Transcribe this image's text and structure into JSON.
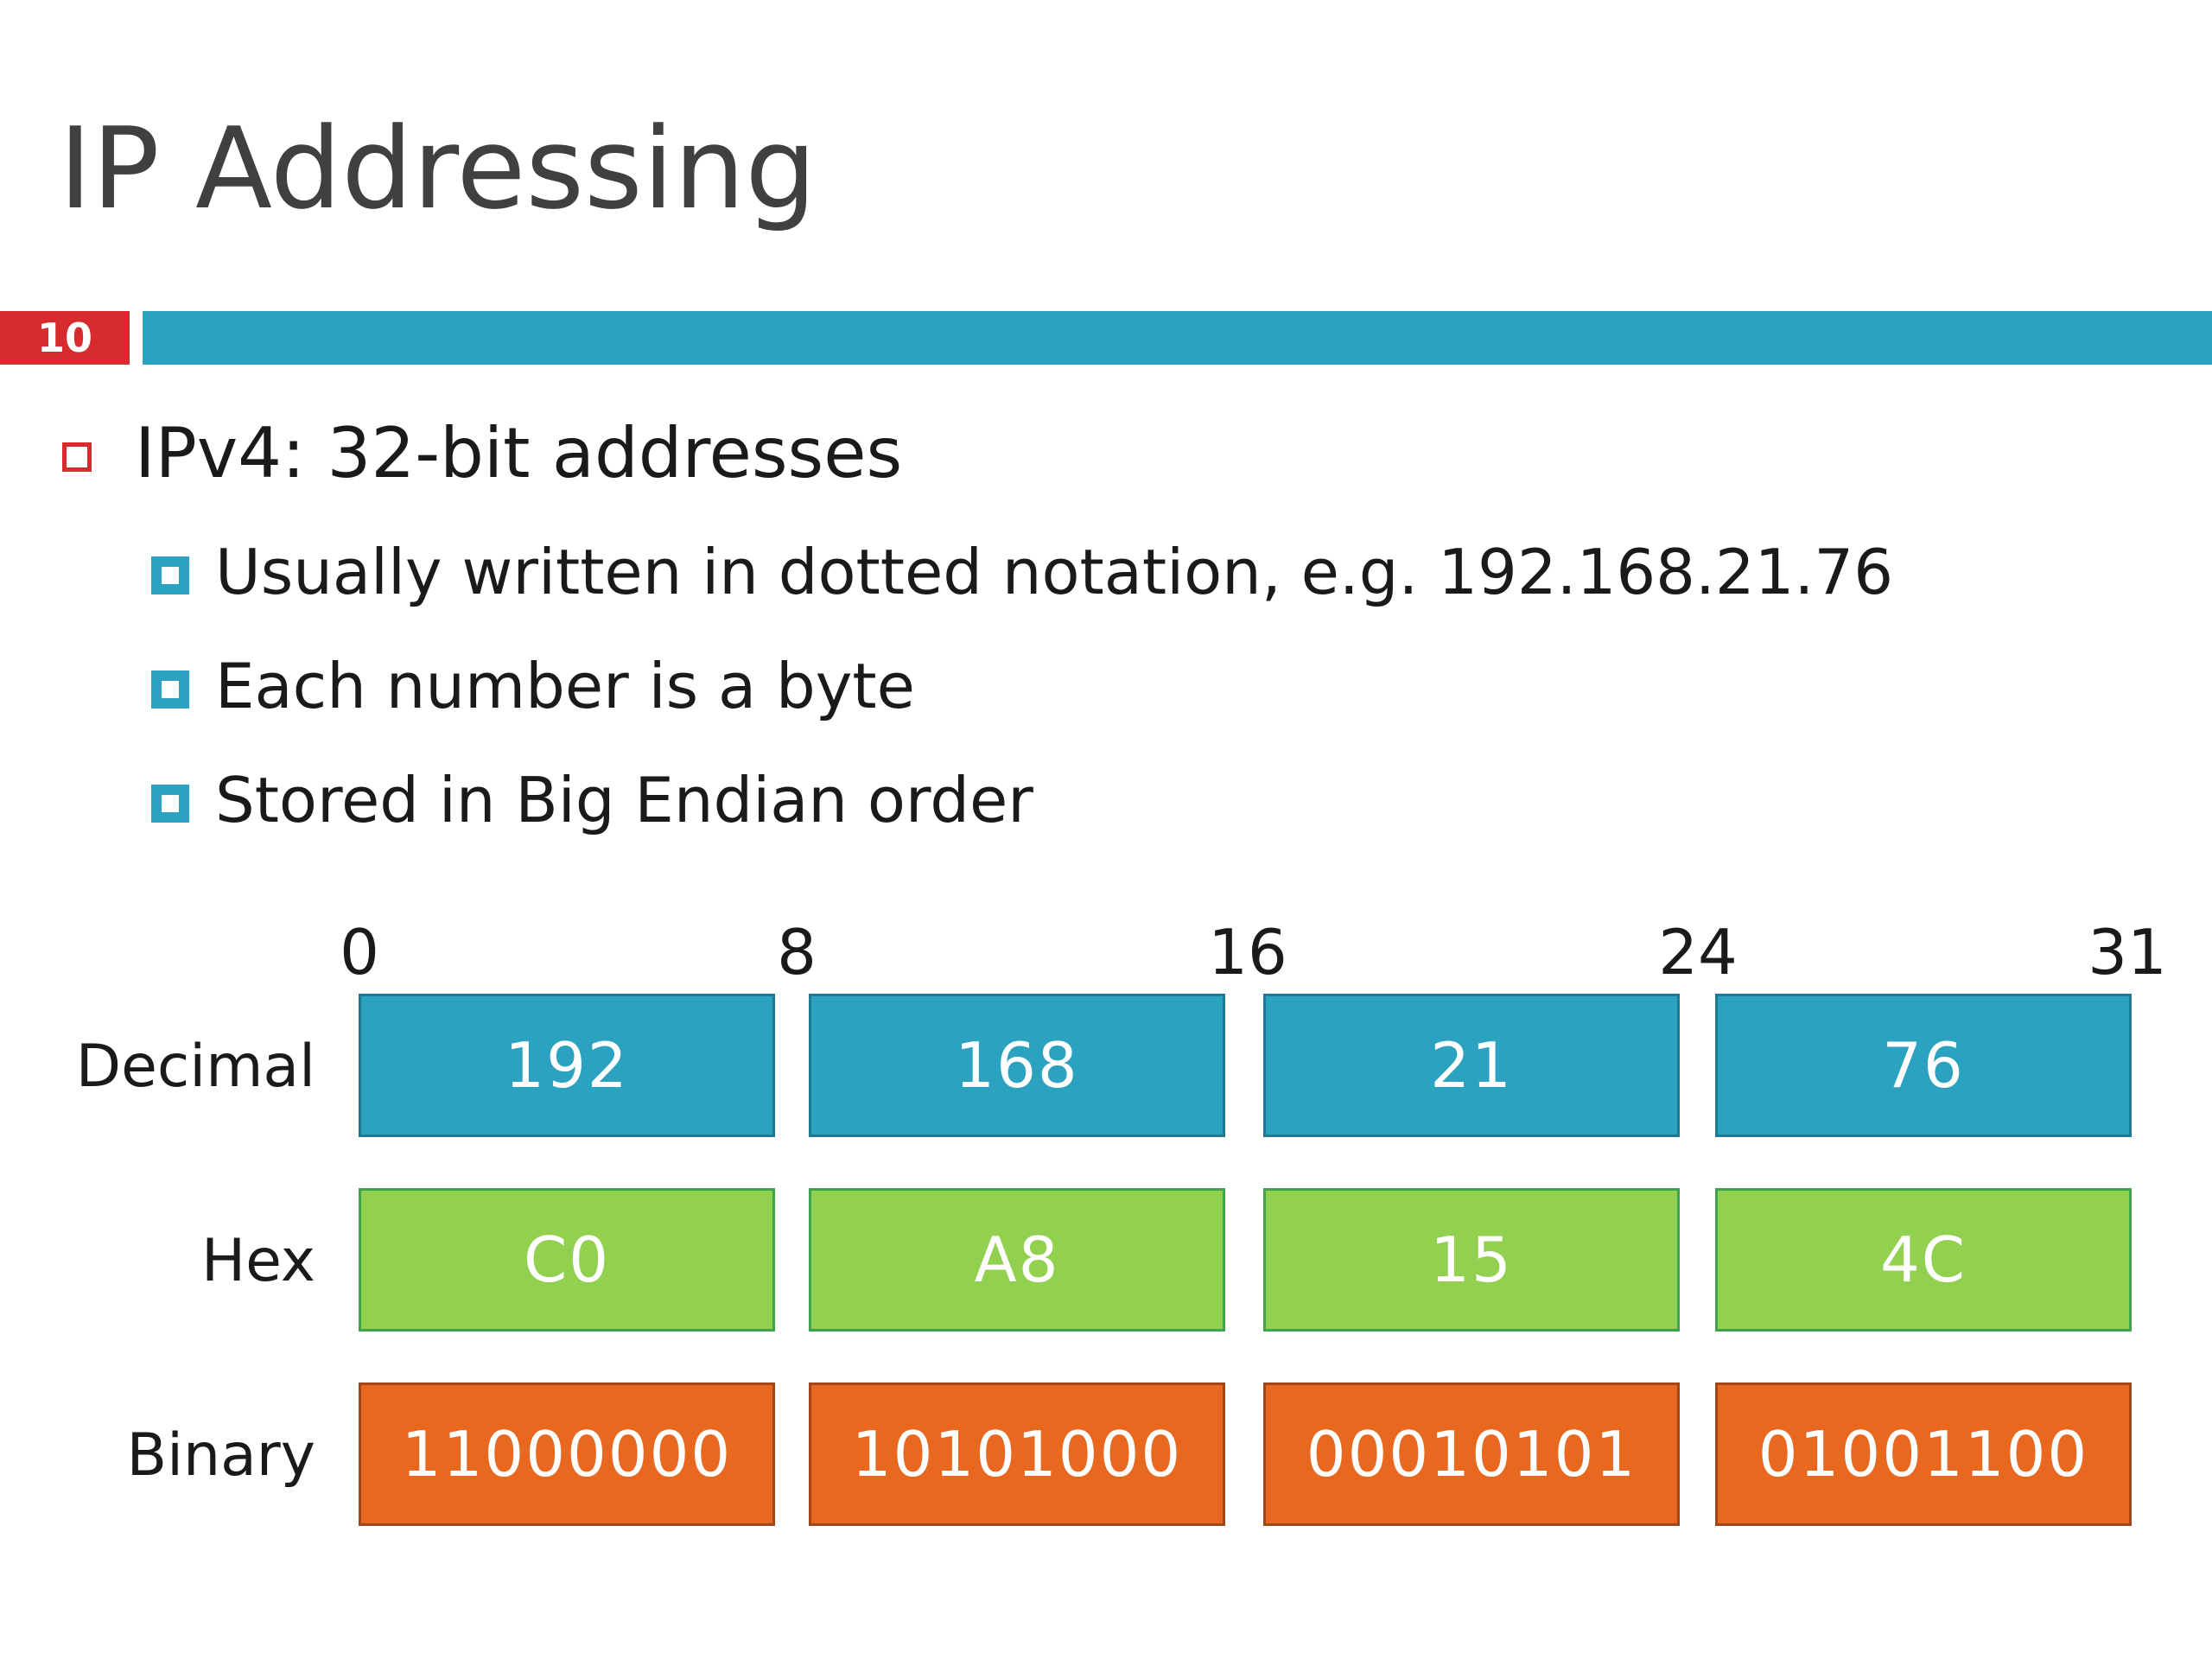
{
  "slide": {
    "title": "IP Addressing",
    "number": "10"
  },
  "bullets": {
    "level1": "IPv4: 32-bit addresses",
    "level2": [
      "Usually written in dotted notation, e.g. 192.168.21.76",
      "Each number is a byte",
      "Stored in Big Endian order"
    ]
  },
  "diagram": {
    "bit_ticks": [
      "0",
      "8",
      "16",
      "24",
      "31"
    ],
    "rows": [
      {
        "label": "Decimal",
        "values": [
          "192",
          "168",
          "21",
          "76"
        ],
        "color": "#2ba2c0"
      },
      {
        "label": "Hex",
        "values": [
          "C0",
          "A8",
          "15",
          "4C"
        ],
        "color": "#92d050"
      },
      {
        "label": "Binary",
        "values": [
          "11000000",
          "10101000",
          "00010101",
          "01001100"
        ],
        "color": "#e7681e"
      }
    ]
  },
  "colors": {
    "accent_red": "#d72b2e",
    "accent_blue": "#2ba2c0"
  }
}
